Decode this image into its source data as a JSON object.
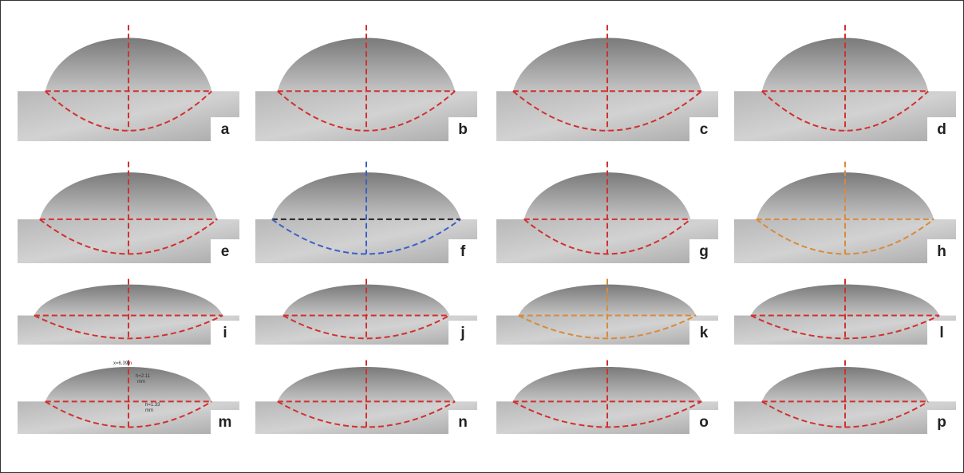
{
  "panels": [
    "a",
    "b",
    "c",
    "d",
    "e",
    "f",
    "g",
    "h",
    "i",
    "j",
    "k",
    "l",
    "m",
    "n",
    "o",
    "p"
  ],
  "annotations": {
    "m": [
      "x=6.39m",
      "h=2.11",
      "mm",
      "h=1.33",
      "mm"
    ]
  }
}
